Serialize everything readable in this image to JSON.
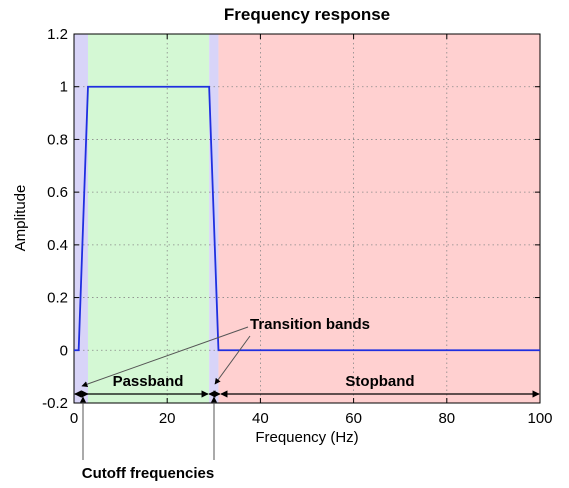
{
  "chart_data": {
    "type": "line",
    "title": "Frequency response",
    "xlabel": "Frequency (Hz)",
    "ylabel": "Amplitude",
    "xlim": [
      0,
      100
    ],
    "ylim": [
      -0.2,
      1.2
    ],
    "xticks": [
      0,
      20,
      40,
      60,
      80,
      100
    ],
    "yticks": [
      -0.2,
      0,
      0.2,
      0.4,
      0.6,
      0.8,
      1,
      1.2
    ],
    "xtick_labels": [
      "0",
      "20",
      "40",
      "60",
      "80",
      "100"
    ],
    "ytick_labels": [
      "-0.2",
      "0",
      "0.2",
      "0.4",
      "0.6",
      "0.8",
      "1",
      "1.2"
    ],
    "grid": true,
    "series": [
      {
        "x": [
          0,
          1,
          3,
          29,
          31,
          100
        ],
        "y": [
          0,
          0,
          1,
          1,
          0,
          0
        ],
        "color": "#1f2fe0"
      }
    ],
    "regions": [
      {
        "from": -0.5,
        "to": 0,
        "color": "#ffd0d0"
      },
      {
        "from": 0,
        "to": 3,
        "color": "#d8d4f8"
      },
      {
        "from": 3,
        "to": 29,
        "color": "#d4f8d4"
      },
      {
        "from": 29,
        "to": 31,
        "color": "#d8d4f8"
      },
      {
        "from": 31,
        "to": 100,
        "color": "#ffd0d0"
      }
    ],
    "annotations": {
      "passband": "Passband",
      "stopband": "Stopband",
      "transition": "Transition bands",
      "cutoff": "Cutoff frequencies"
    }
  }
}
